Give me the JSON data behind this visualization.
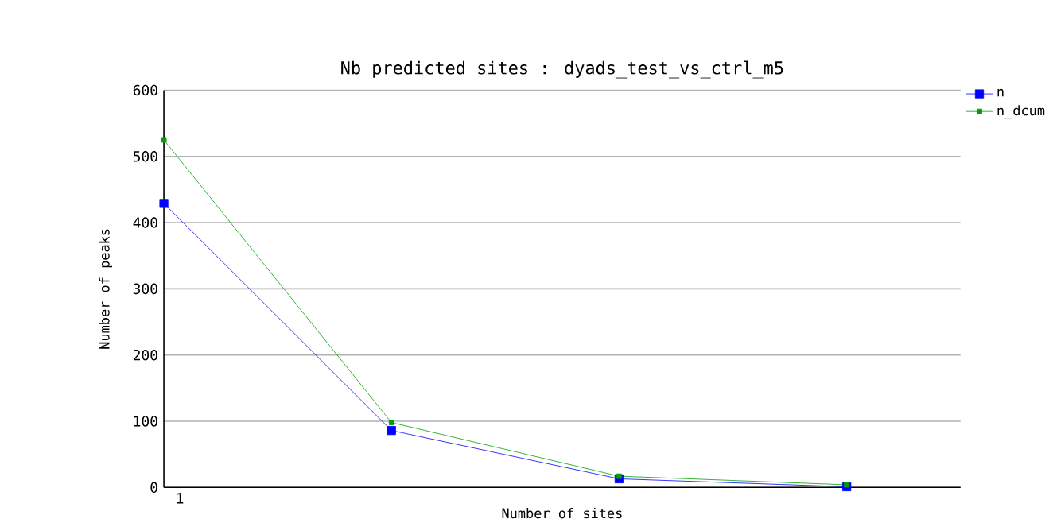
{
  "chart_data": {
    "type": "line",
    "title": "Nb predicted sites : dyads_test_vs_ctrl_m5",
    "xlabel": "Number of sites",
    "ylabel": "Number of peaks",
    "categories": [
      "1",
      null,
      null,
      null
    ],
    "series": [
      {
        "name": "n",
        "color": "#0000ff",
        "values": [
          429,
          86,
          13,
          1
        ]
      },
      {
        "name": "n_dcum",
        "color": "#00a000",
        "values": [
          525,
          98,
          17,
          4
        ]
      }
    ],
    "ylim": [
      0,
      600
    ],
    "yticks": [
      0,
      100,
      200,
      300,
      400,
      500,
      600
    ],
    "grid": "y",
    "legend": "top right",
    "marker": "square",
    "line_style": "solid"
  }
}
